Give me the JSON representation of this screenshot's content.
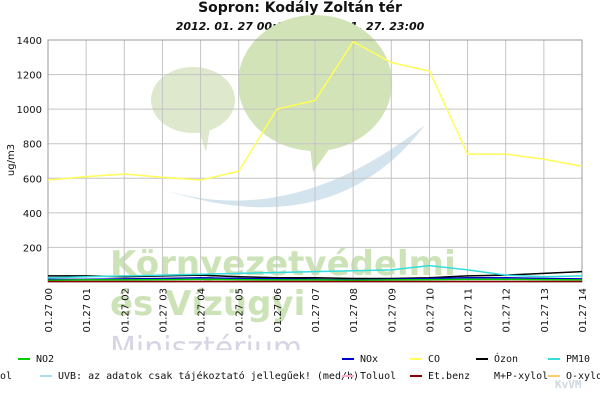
{
  "chart_data": {
    "type": "line",
    "title": "Sopron: Kodály Zoltán tér",
    "subtitle": "2012. 01. 27 00:00 - 2012 .01. 27. 23:00",
    "ylabel": "ug/m3",
    "ylim": [
      0,
      1400
    ],
    "yticks": [
      200,
      400,
      600,
      800,
      1000,
      1200,
      1400
    ],
    "categories": [
      "01.27 00",
      "01.27 01",
      "01.27 02",
      "01.27 03",
      "01.27 04",
      "01.27 05",
      "01.27 06",
      "01.27 07",
      "01.27 08",
      "01.27 09",
      "01.27 10",
      "01.27 11",
      "01.27 12",
      "01.27 13",
      "01.27 14"
    ],
    "grid": true,
    "series": [
      {
        "name": "CO",
        "color": "#ffff55",
        "values": [
          590,
          610,
          625,
          605,
          590,
          640,
          1000,
          1050,
          1390,
          1270,
          1220,
          740,
          740,
          710,
          670
        ]
      },
      {
        "name": "Ózon",
        "color": "#000000",
        "values": [
          35,
          35,
          30,
          35,
          40,
          30,
          25,
          25,
          20,
          20,
          25,
          35,
          40,
          50,
          60
        ]
      },
      {
        "name": "PM10",
        "color": "#33dddd",
        "values": [
          25,
          30,
          35,
          40,
          45,
          50,
          55,
          60,
          65,
          70,
          95,
          70,
          40,
          30,
          35
        ]
      },
      {
        "name": "NOx",
        "color": "#0000cc",
        "values": [
          15,
          15,
          18,
          20,
          25,
          20,
          18,
          15,
          12,
          15,
          20,
          25,
          25,
          20,
          18
        ]
      },
      {
        "name": "NO2",
        "color": "#00cc00",
        "values": [
          10,
          12,
          12,
          14,
          15,
          14,
          12,
          12,
          10,
          12,
          14,
          15,
          15,
          14,
          12
        ]
      },
      {
        "name": "Et.benz",
        "color": "#880000",
        "values": [
          3,
          3,
          3,
          3,
          3,
          3,
          3,
          3,
          3,
          3,
          3,
          3,
          3,
          3,
          3
        ]
      }
    ]
  },
  "legend": {
    "row1": [
      {
        "label": "NO2",
        "color": "#00cc00"
      },
      {
        "label": "NOx",
        "color": "#0000cc"
      },
      {
        "label": "CO",
        "color": "#ffff55"
      },
      {
        "label": "Ózon",
        "color": "#000000"
      },
      {
        "label": "PM10",
        "color": "#33dddd"
      }
    ],
    "row2": [
      {
        "label": "ol",
        "color": ""
      },
      {
        "label": "UVB: az adatok csak tájékoztató jellegűek! (med/h)",
        "color": "#aaddee"
      },
      {
        "label": "Toluol",
        "color": "#ffaacc"
      },
      {
        "label": "Et.benz",
        "color": "#880000"
      },
      {
        "label": "M+P-xylol",
        "color": "#ffffff"
      },
      {
        "label": "O-xylol",
        "color": "#ffcc66"
      }
    ]
  },
  "watermark": {
    "line1": "Környezetvédelmi",
    "line2": "és Vízügyi",
    "line3": "Minisztérium",
    "corner": "KvVM"
  }
}
